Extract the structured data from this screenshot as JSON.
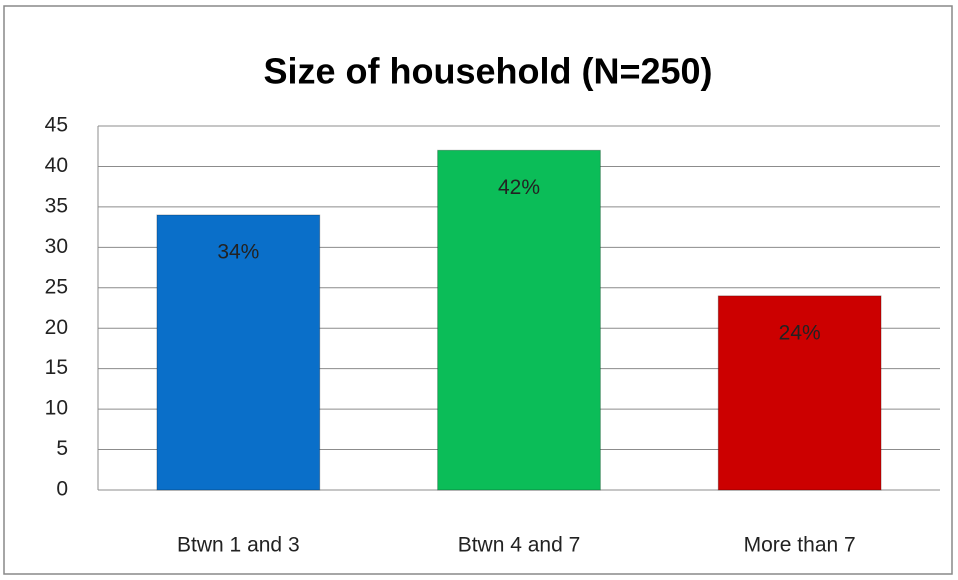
{
  "chart_data": {
    "type": "bar",
    "title": "Size of household (N=250)",
    "categories": [
      "Btwn 1 and 3",
      "Btwn 4 and 7",
      "More than 7"
    ],
    "values": [
      34,
      42,
      24
    ],
    "value_labels": [
      "34%",
      "42%",
      "24%"
    ],
    "colors": [
      "#0a6fc9",
      "#0bbd58",
      "#cc0000"
    ],
    "ylim": [
      0,
      45
    ],
    "yticks": [
      0,
      5,
      10,
      15,
      20,
      25,
      30,
      35,
      40,
      45
    ],
    "grid": true
  }
}
